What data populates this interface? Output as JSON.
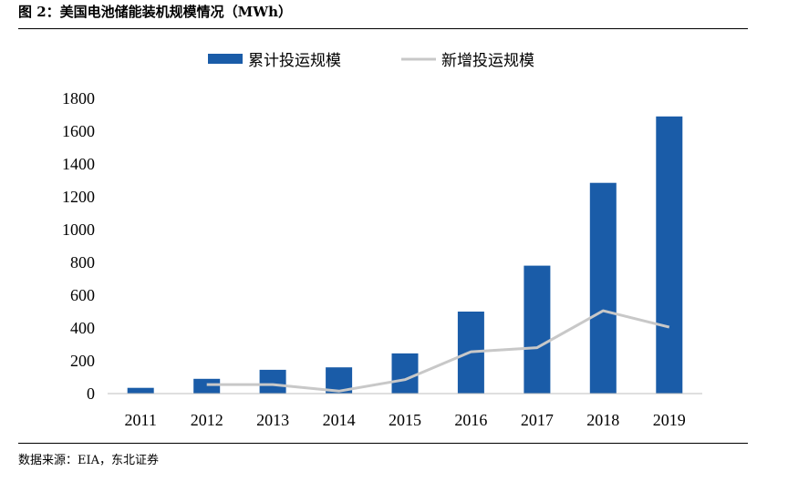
{
  "figure": {
    "title": "图 2：美国电池储能装机规模情况（MWh）",
    "source": "数据来源：EIA，东北证券"
  },
  "colors": {
    "bar": "#1a5ca8",
    "line": "#c8c8c8",
    "axis": "#bfbfbf"
  },
  "chart_data": {
    "type": "bar",
    "categories": [
      "2011",
      "2012",
      "2013",
      "2014",
      "2015",
      "2016",
      "2017",
      "2018",
      "2019"
    ],
    "series": [
      {
        "name": "累计投运规模",
        "type": "bar",
        "values": [
          35,
          90,
          145,
          160,
          245,
          500,
          780,
          1285,
          1690
        ]
      },
      {
        "name": "新增投运规模",
        "type": "line",
        "values": [
          null,
          55,
          55,
          15,
          85,
          255,
          280,
          505,
          405
        ]
      }
    ],
    "yticks": [
      "0",
      "200",
      "400",
      "600",
      "800",
      "1000",
      "1200",
      "1400",
      "1600",
      "1800"
    ],
    "ylim": [
      0,
      1800
    ],
    "legend": "top-center",
    "grid": false
  }
}
